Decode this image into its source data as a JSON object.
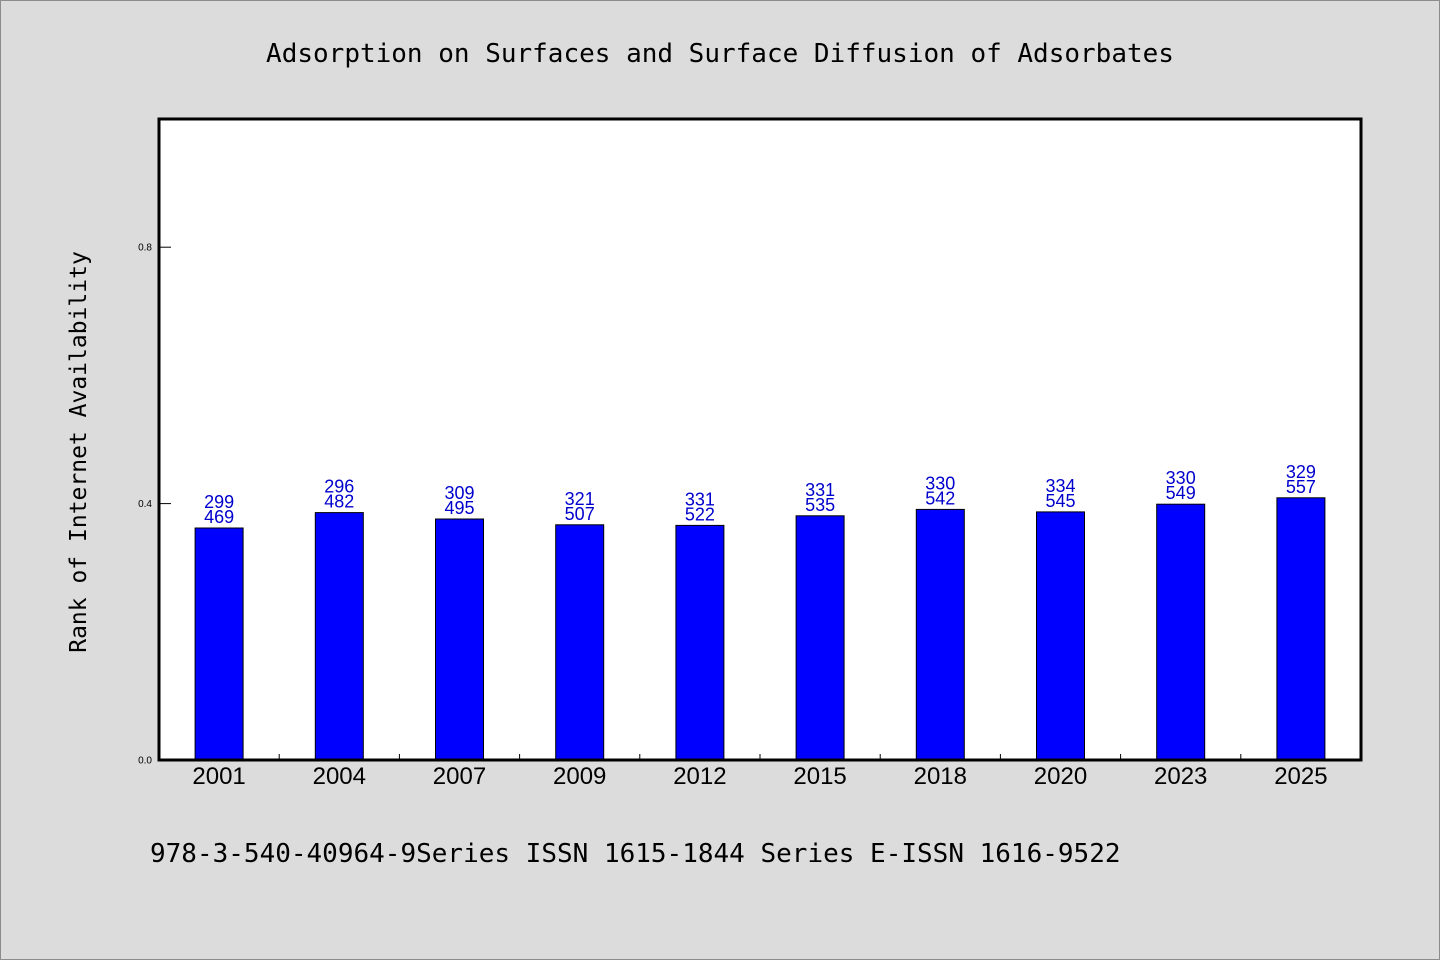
{
  "chart_data": {
    "type": "bar",
    "title": "Adsorption on Surfaces and Surface Diffusion of Adsorbates",
    "ylabel": "Rank of Internet Availability",
    "categories": [
      "2001",
      "2004",
      "2007",
      "2009",
      "2012",
      "2015",
      "2018",
      "2020",
      "2023",
      "2025"
    ],
    "values": [
      0.362,
      0.386,
      0.376,
      0.367,
      0.366,
      0.381,
      0.391,
      0.387,
      0.399,
      0.409
    ],
    "data_labels": [
      [
        "299",
        "469"
      ],
      [
        "296",
        "482"
      ],
      [
        "309",
        "495"
      ],
      [
        "321",
        "507"
      ],
      [
        "331",
        "522"
      ],
      [
        "331",
        "535"
      ],
      [
        "330",
        "542"
      ],
      [
        "334",
        "545"
      ],
      [
        "330",
        "549"
      ],
      [
        "329",
        "557"
      ]
    ],
    "ylim": [
      0,
      1.0
    ],
    "yticks": [
      "0.0",
      "0.4",
      "0.8"
    ],
    "grid": false,
    "colors": {
      "bar": "#0000ff",
      "bar_edge": "#000000",
      "data_label": "#0000cc",
      "page_background": "#dcdcdc",
      "plot_background": "#ffffff"
    }
  },
  "footer": {
    "text": "978-3-540-40964-9Series ISSN 1615-1844 Series E-ISSN 1616-9522"
  }
}
